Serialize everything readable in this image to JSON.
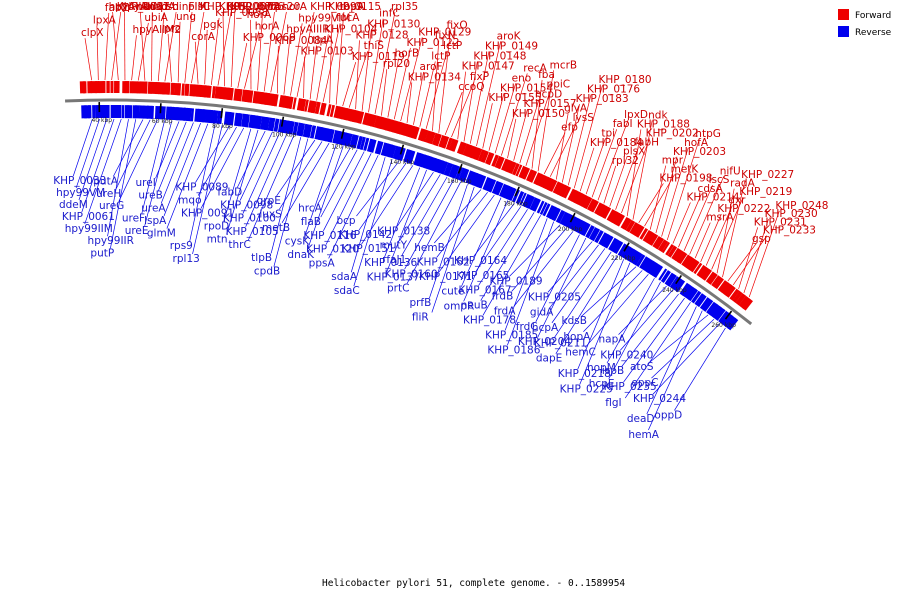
{
  "title": "Helicobacter pylori 51, complete genome. - 0..1589954",
  "colors": {
    "forward": "#ee0000",
    "reverse": "#0000ee",
    "backbone": "#777777"
  },
  "legend": [
    {
      "label": "Forward",
      "color": "#ee0000"
    },
    {
      "label": "Reverse",
      "color": "#0000ee"
    }
  ],
  "ticks": [
    "40 kbp",
    "60 kbp",
    "80 kbp",
    "100 kbp",
    "120 kbp",
    "140 kbp",
    "160 kbp",
    "180 kbp",
    "200 kbp",
    "220 kbp",
    "240 kbp",
    "260 kbp"
  ],
  "forward_labels": [
    "clpX",
    "lpxA",
    "fabZ",
    "KHP_0037",
    "hpyAIIR",
    "hpyAIIM1",
    "hpyAIIM2",
    "ubiA",
    "nadC",
    "nadA",
    "psd",
    "hinFIM",
    "prc",
    "ung",
    "plsC",
    "KHP_0052",
    "corA",
    "pgk",
    "KHP_0058",
    "KHP_0068",
    "KHP_0067",
    "KHP_0066",
    "KHP_0069",
    "horA",
    "horA",
    "prfA",
    "rps20",
    "horA",
    "KHP_0084",
    "hpyAIIIR",
    "hpy99VIM",
    "KHP_0099",
    "KHP_0103",
    "tlpA",
    "KHP_0104",
    "fucA",
    "KHP_0115",
    "topA",
    "KHP_0119",
    "thiS",
    "KHP_0128",
    "KHP_0130",
    "infC",
    "rpl35",
    "rpl20",
    "horB",
    "KHP_0122",
    "KHP_0129",
    "KHP_0134",
    "aroF",
    "lctP",
    "lctP",
    "fixN",
    "fixO",
    "ccoQ",
    "fixP",
    "KHP_0147",
    "KHP_0148",
    "KHP_0149",
    "aroK",
    "KHP_0155",
    "KHP_0154",
    "eno",
    "recA",
    "KHP_0150",
    "KHP_0157",
    "hcpD",
    "ppiC",
    "fba",
    "mcrB",
    "efp",
    "lysS",
    "glyA",
    "KHP_0183",
    "KHP_0176",
    "KHP_0180",
    "KHP_0184",
    "tpi",
    "fabI",
    "lpxD",
    "rpl32",
    "plsX",
    "fabH",
    "KHP_0202",
    "KHP_0188",
    "ndk",
    "KHP_0198",
    "metK",
    "mpr",
    "KHP_0203",
    "hofA",
    "htpG",
    "KHP_0214",
    "cdsA",
    "iscS",
    "nifU",
    "msrA",
    "KHP_0222",
    "dxr",
    "KHP_0219",
    "radA",
    "KHP_0227",
    "gsp",
    "KHP_0233",
    "KHP_0231",
    "KHP_0230",
    "KHP_0248"
  ],
  "reverse_labels": [
    "KHP_0033",
    "hpy99VM",
    "ddeM",
    "KHP_0061",
    "hpy99IIM",
    "hpy99IIR",
    "putP",
    "putA",
    "ureH",
    "ureG",
    "ureF",
    "ureE",
    "ureI",
    "ureB",
    "ureA",
    "lspA",
    "glmM",
    "rps9",
    "rpl13",
    "KHP_0089",
    "mqo",
    "KHP_0091",
    "rpoD",
    "mtn",
    "fabD",
    "KHP_0098",
    "KHP_0100",
    "KHP_0105",
    "thrC",
    "tlpB",
    "cpdB",
    "grpE",
    "luxS",
    "metB",
    "cysK",
    "dnaK",
    "hrcA",
    "flaB",
    "KHP_0116",
    "KHP_0120",
    "ppsA",
    "sdaA",
    "sdaC",
    "bcp",
    "KHP_0142",
    "KHP_0151",
    "KHP_0136",
    "KHP_0137",
    "KHP_0138",
    "mutY",
    "rfaJ1",
    "KHP_0160",
    "prtC",
    "prfB",
    "fliR",
    "hemB",
    "KHP_0162",
    "KHP_0171",
    "cute",
    "ompR",
    "KHP_0164",
    "KHP_0165",
    "KHP_0167",
    "neuB",
    "KHP_0178",
    "KHP_0185",
    "KHP_0186",
    "KHP_0189",
    "frdB",
    "frdA",
    "frdC",
    "KHP_0204",
    "KHP_0205",
    "gidA",
    "hcpA",
    "KHP_0211",
    "dapE",
    "KHP_0218",
    "KHP_0225",
    "kdsB",
    "hopA",
    "hemC",
    "hopM",
    "hcpE",
    "napA",
    "KHP_0240",
    "ispB",
    "KHP_0235",
    "flgI",
    "deaD",
    "hemA",
    "atoS",
    "oppC",
    "KHP_0244",
    "oppD"
  ]
}
